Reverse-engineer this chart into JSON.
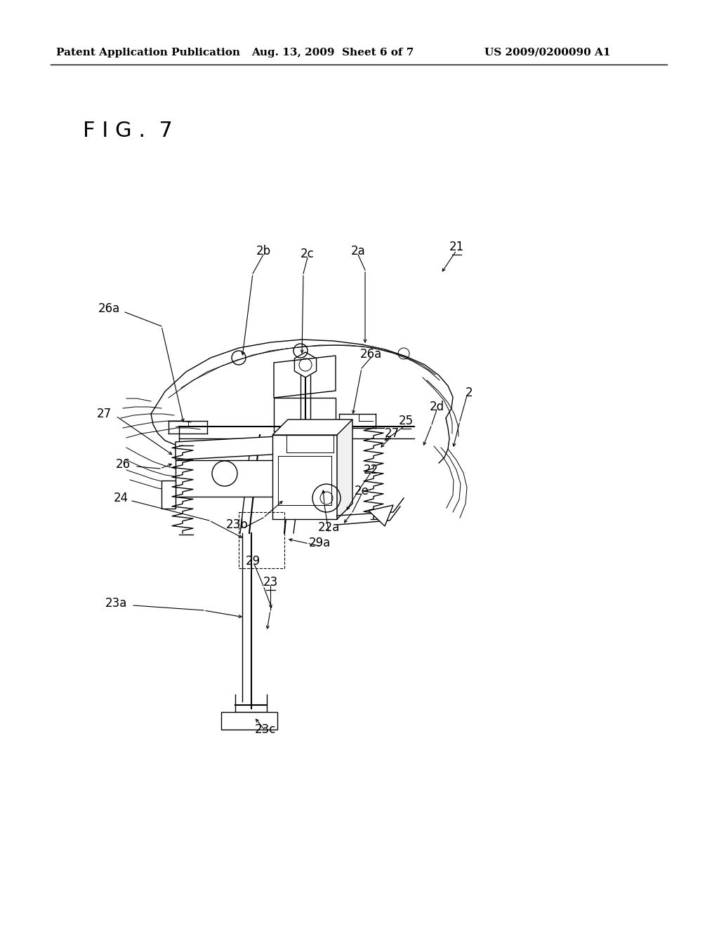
{
  "background_color": "#ffffff",
  "header_left": "Patent Application Publication",
  "header_center": "Aug. 13, 2009  Sheet 6 of 7",
  "header_right": "US 2009/0200090 A1",
  "figure_label": "F I G .  7",
  "header_fontsize": 11,
  "figure_label_fontsize": 22,
  "annotation_fontsize": 12,
  "page_width": 10.24,
  "page_height": 13.2
}
